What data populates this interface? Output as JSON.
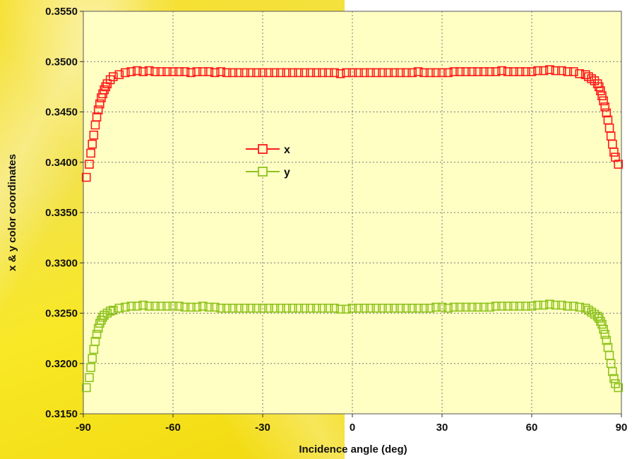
{
  "chart_data": {
    "type": "scatter",
    "xlabel": "Incidence angle (deg)",
    "ylabel": "x & y color coordinates",
    "xlim": [
      -90,
      90
    ],
    "ylim": [
      0.315,
      0.355
    ],
    "x_ticks": [
      -90,
      -60,
      -30,
      0,
      30,
      60,
      90
    ],
    "x_tick_labels": [
      "-90",
      "-60",
      "-30",
      "0",
      "30",
      "60",
      "90"
    ],
    "y_ticks": [
      0.315,
      0.32,
      0.325,
      0.33,
      0.335,
      0.34,
      0.345,
      0.35,
      0.355
    ],
    "y_tick_labels": [
      "0.3150",
      "0.3200",
      "0.3250",
      "0.3300",
      "0.3350",
      "0.3400",
      "0.3450",
      "0.3500",
      "0.3550"
    ],
    "grid": true,
    "legend_position": "center-left",
    "plot_background": "#ffffc4",
    "series": [
      {
        "name": "x",
        "color": "#ff1a1a",
        "marker": "square",
        "points": [
          [
            -89,
            0.3385
          ],
          [
            -88,
            0.3398
          ],
          [
            -87.5,
            0.3409
          ],
          [
            -87,
            0.3418
          ],
          [
            -86.5,
            0.3427
          ],
          [
            -86,
            0.3437
          ],
          [
            -85.5,
            0.3445
          ],
          [
            -85,
            0.3452
          ],
          [
            -84.5,
            0.3458
          ],
          [
            -84,
            0.3464
          ],
          [
            -83.5,
            0.3468
          ],
          [
            -83,
            0.3472
          ],
          [
            -82.5,
            0.3475
          ],
          [
            -82,
            0.3478
          ],
          [
            -81,
            0.3482
          ],
          [
            -80,
            0.3485
          ],
          [
            -78,
            0.3487
          ],
          [
            -76,
            0.3489
          ],
          [
            -74,
            0.349
          ],
          [
            -72,
            0.3491
          ],
          [
            -70,
            0.349
          ],
          [
            -68,
            0.3491
          ],
          [
            -66,
            0.349
          ],
          [
            -64,
            0.349
          ],
          [
            -62,
            0.349
          ],
          [
            -60,
            0.349
          ],
          [
            -58,
            0.349
          ],
          [
            -56,
            0.349
          ],
          [
            -54,
            0.3489
          ],
          [
            -52,
            0.349
          ],
          [
            -50,
            0.349
          ],
          [
            -48,
            0.349
          ],
          [
            -46,
            0.3489
          ],
          [
            -44,
            0.349
          ],
          [
            -42,
            0.3489
          ],
          [
            -40,
            0.3489
          ],
          [
            -38,
            0.3489
          ],
          [
            -36,
            0.3489
          ],
          [
            -34,
            0.3489
          ],
          [
            -32,
            0.3489
          ],
          [
            -30,
            0.3489
          ],
          [
            -28,
            0.3489
          ],
          [
            -26,
            0.3489
          ],
          [
            -24,
            0.3489
          ],
          [
            -22,
            0.3489
          ],
          [
            -20,
            0.3489
          ],
          [
            -18,
            0.3489
          ],
          [
            -16,
            0.3489
          ],
          [
            -14,
            0.3489
          ],
          [
            -12,
            0.3489
          ],
          [
            -10,
            0.3489
          ],
          [
            -8,
            0.3489
          ],
          [
            -6,
            0.3489
          ],
          [
            -4,
            0.3488
          ],
          [
            -2,
            0.3489
          ],
          [
            0,
            0.3489
          ],
          [
            2,
            0.3489
          ],
          [
            4,
            0.3489
          ],
          [
            6,
            0.3489
          ],
          [
            8,
            0.3489
          ],
          [
            10,
            0.3489
          ],
          [
            12,
            0.3489
          ],
          [
            14,
            0.3489
          ],
          [
            16,
            0.3489
          ],
          [
            18,
            0.3489
          ],
          [
            20,
            0.3489
          ],
          [
            22,
            0.349
          ],
          [
            24,
            0.3489
          ],
          [
            26,
            0.3489
          ],
          [
            28,
            0.3489
          ],
          [
            30,
            0.3489
          ],
          [
            32,
            0.3489
          ],
          [
            34,
            0.349
          ],
          [
            36,
            0.349
          ],
          [
            38,
            0.349
          ],
          [
            40,
            0.349
          ],
          [
            42,
            0.349
          ],
          [
            44,
            0.349
          ],
          [
            46,
            0.349
          ],
          [
            48,
            0.349
          ],
          [
            50,
            0.3491
          ],
          [
            52,
            0.349
          ],
          [
            54,
            0.349
          ],
          [
            56,
            0.349
          ],
          [
            58,
            0.349
          ],
          [
            60,
            0.349
          ],
          [
            62,
            0.3491
          ],
          [
            64,
            0.3491
          ],
          [
            66,
            0.3492
          ],
          [
            68,
            0.3491
          ],
          [
            70,
            0.3491
          ],
          [
            72,
            0.349
          ],
          [
            74,
            0.349
          ],
          [
            76,
            0.3488
          ],
          [
            78,
            0.3487
          ],
          [
            79,
            0.3485
          ],
          [
            80,
            0.3483
          ],
          [
            81,
            0.3481
          ],
          [
            82,
            0.3478
          ],
          [
            82.5,
            0.3475
          ],
          [
            83,
            0.3471
          ],
          [
            83.5,
            0.3466
          ],
          [
            84,
            0.3461
          ],
          [
            84.5,
            0.3455
          ],
          [
            85,
            0.3449
          ],
          [
            85.5,
            0.3442
          ],
          [
            86,
            0.3434
          ],
          [
            86.5,
            0.3426
          ],
          [
            87,
            0.3418
          ],
          [
            87.5,
            0.341
          ],
          [
            88,
            0.3405
          ],
          [
            89,
            0.3398
          ]
        ]
      },
      {
        "name": "y",
        "color": "#8fc31f",
        "marker": "square",
        "points": [
          [
            -89,
            0.3176
          ],
          [
            -88,
            0.3186
          ],
          [
            -87.5,
            0.3196
          ],
          [
            -87,
            0.3205
          ],
          [
            -86.5,
            0.3214
          ],
          [
            -86,
            0.3222
          ],
          [
            -85.5,
            0.3229
          ],
          [
            -85,
            0.3235
          ],
          [
            -84.5,
            0.324
          ],
          [
            -84,
            0.3243
          ],
          [
            -83.5,
            0.3246
          ],
          [
            -83,
            0.3248
          ],
          [
            -82,
            0.325
          ],
          [
            -81,
            0.3252
          ],
          [
            -80,
            0.3253
          ],
          [
            -78,
            0.3255
          ],
          [
            -76,
            0.3256
          ],
          [
            -74,
            0.3257
          ],
          [
            -72,
            0.3257
          ],
          [
            -70,
            0.3258
          ],
          [
            -68,
            0.3257
          ],
          [
            -66,
            0.3257
          ],
          [
            -64,
            0.3257
          ],
          [
            -62,
            0.3257
          ],
          [
            -60,
            0.3257
          ],
          [
            -58,
            0.3257
          ],
          [
            -56,
            0.3256
          ],
          [
            -54,
            0.3256
          ],
          [
            -52,
            0.3256
          ],
          [
            -50,
            0.3257
          ],
          [
            -48,
            0.3256
          ],
          [
            -46,
            0.3256
          ],
          [
            -44,
            0.3255
          ],
          [
            -42,
            0.3255
          ],
          [
            -40,
            0.3255
          ],
          [
            -38,
            0.3255
          ],
          [
            -36,
            0.3255
          ],
          [
            -34,
            0.3255
          ],
          [
            -32,
            0.3255
          ],
          [
            -30,
            0.3255
          ],
          [
            -28,
            0.3255
          ],
          [
            -26,
            0.3255
          ],
          [
            -24,
            0.3255
          ],
          [
            -22,
            0.3255
          ],
          [
            -20,
            0.3255
          ],
          [
            -18,
            0.3255
          ],
          [
            -16,
            0.3255
          ],
          [
            -14,
            0.3255
          ],
          [
            -12,
            0.3255
          ],
          [
            -10,
            0.3255
          ],
          [
            -8,
            0.3255
          ],
          [
            -6,
            0.3255
          ],
          [
            -4,
            0.3254
          ],
          [
            -2,
            0.3254
          ],
          [
            0,
            0.3255
          ],
          [
            2,
            0.3255
          ],
          [
            4,
            0.3255
          ],
          [
            6,
            0.3255
          ],
          [
            8,
            0.3255
          ],
          [
            10,
            0.3255
          ],
          [
            12,
            0.3255
          ],
          [
            14,
            0.3255
          ],
          [
            16,
            0.3255
          ],
          [
            18,
            0.3255
          ],
          [
            20,
            0.3255
          ],
          [
            22,
            0.3255
          ],
          [
            24,
            0.3255
          ],
          [
            26,
            0.3255
          ],
          [
            28,
            0.3256
          ],
          [
            30,
            0.3256
          ],
          [
            32,
            0.3255
          ],
          [
            34,
            0.3256
          ],
          [
            36,
            0.3256
          ],
          [
            38,
            0.3256
          ],
          [
            40,
            0.3256
          ],
          [
            42,
            0.3256
          ],
          [
            44,
            0.3256
          ],
          [
            46,
            0.3256
          ],
          [
            48,
            0.3257
          ],
          [
            50,
            0.3257
          ],
          [
            52,
            0.3257
          ],
          [
            54,
            0.3257
          ],
          [
            56,
            0.3257
          ],
          [
            58,
            0.3257
          ],
          [
            60,
            0.3257
          ],
          [
            62,
            0.3258
          ],
          [
            64,
            0.3258
          ],
          [
            66,
            0.3259
          ],
          [
            68,
            0.3258
          ],
          [
            70,
            0.3258
          ],
          [
            72,
            0.3257
          ],
          [
            74,
            0.3257
          ],
          [
            76,
            0.3256
          ],
          [
            78,
            0.3255
          ],
          [
            79,
            0.3253
          ],
          [
            80,
            0.3251
          ],
          [
            81,
            0.3249
          ],
          [
            82,
            0.3247
          ],
          [
            82.5,
            0.3245
          ],
          [
            83,
            0.3242
          ],
          [
            83.5,
            0.3239
          ],
          [
            84,
            0.3234
          ],
          [
            84.5,
            0.3229
          ],
          [
            85,
            0.3223
          ],
          [
            85.5,
            0.3216
          ],
          [
            86,
            0.3208
          ],
          [
            86.5,
            0.32
          ],
          [
            87,
            0.3192
          ],
          [
            87.5,
            0.3185
          ],
          [
            88,
            0.318
          ],
          [
            89,
            0.3176
          ]
        ]
      }
    ]
  }
}
